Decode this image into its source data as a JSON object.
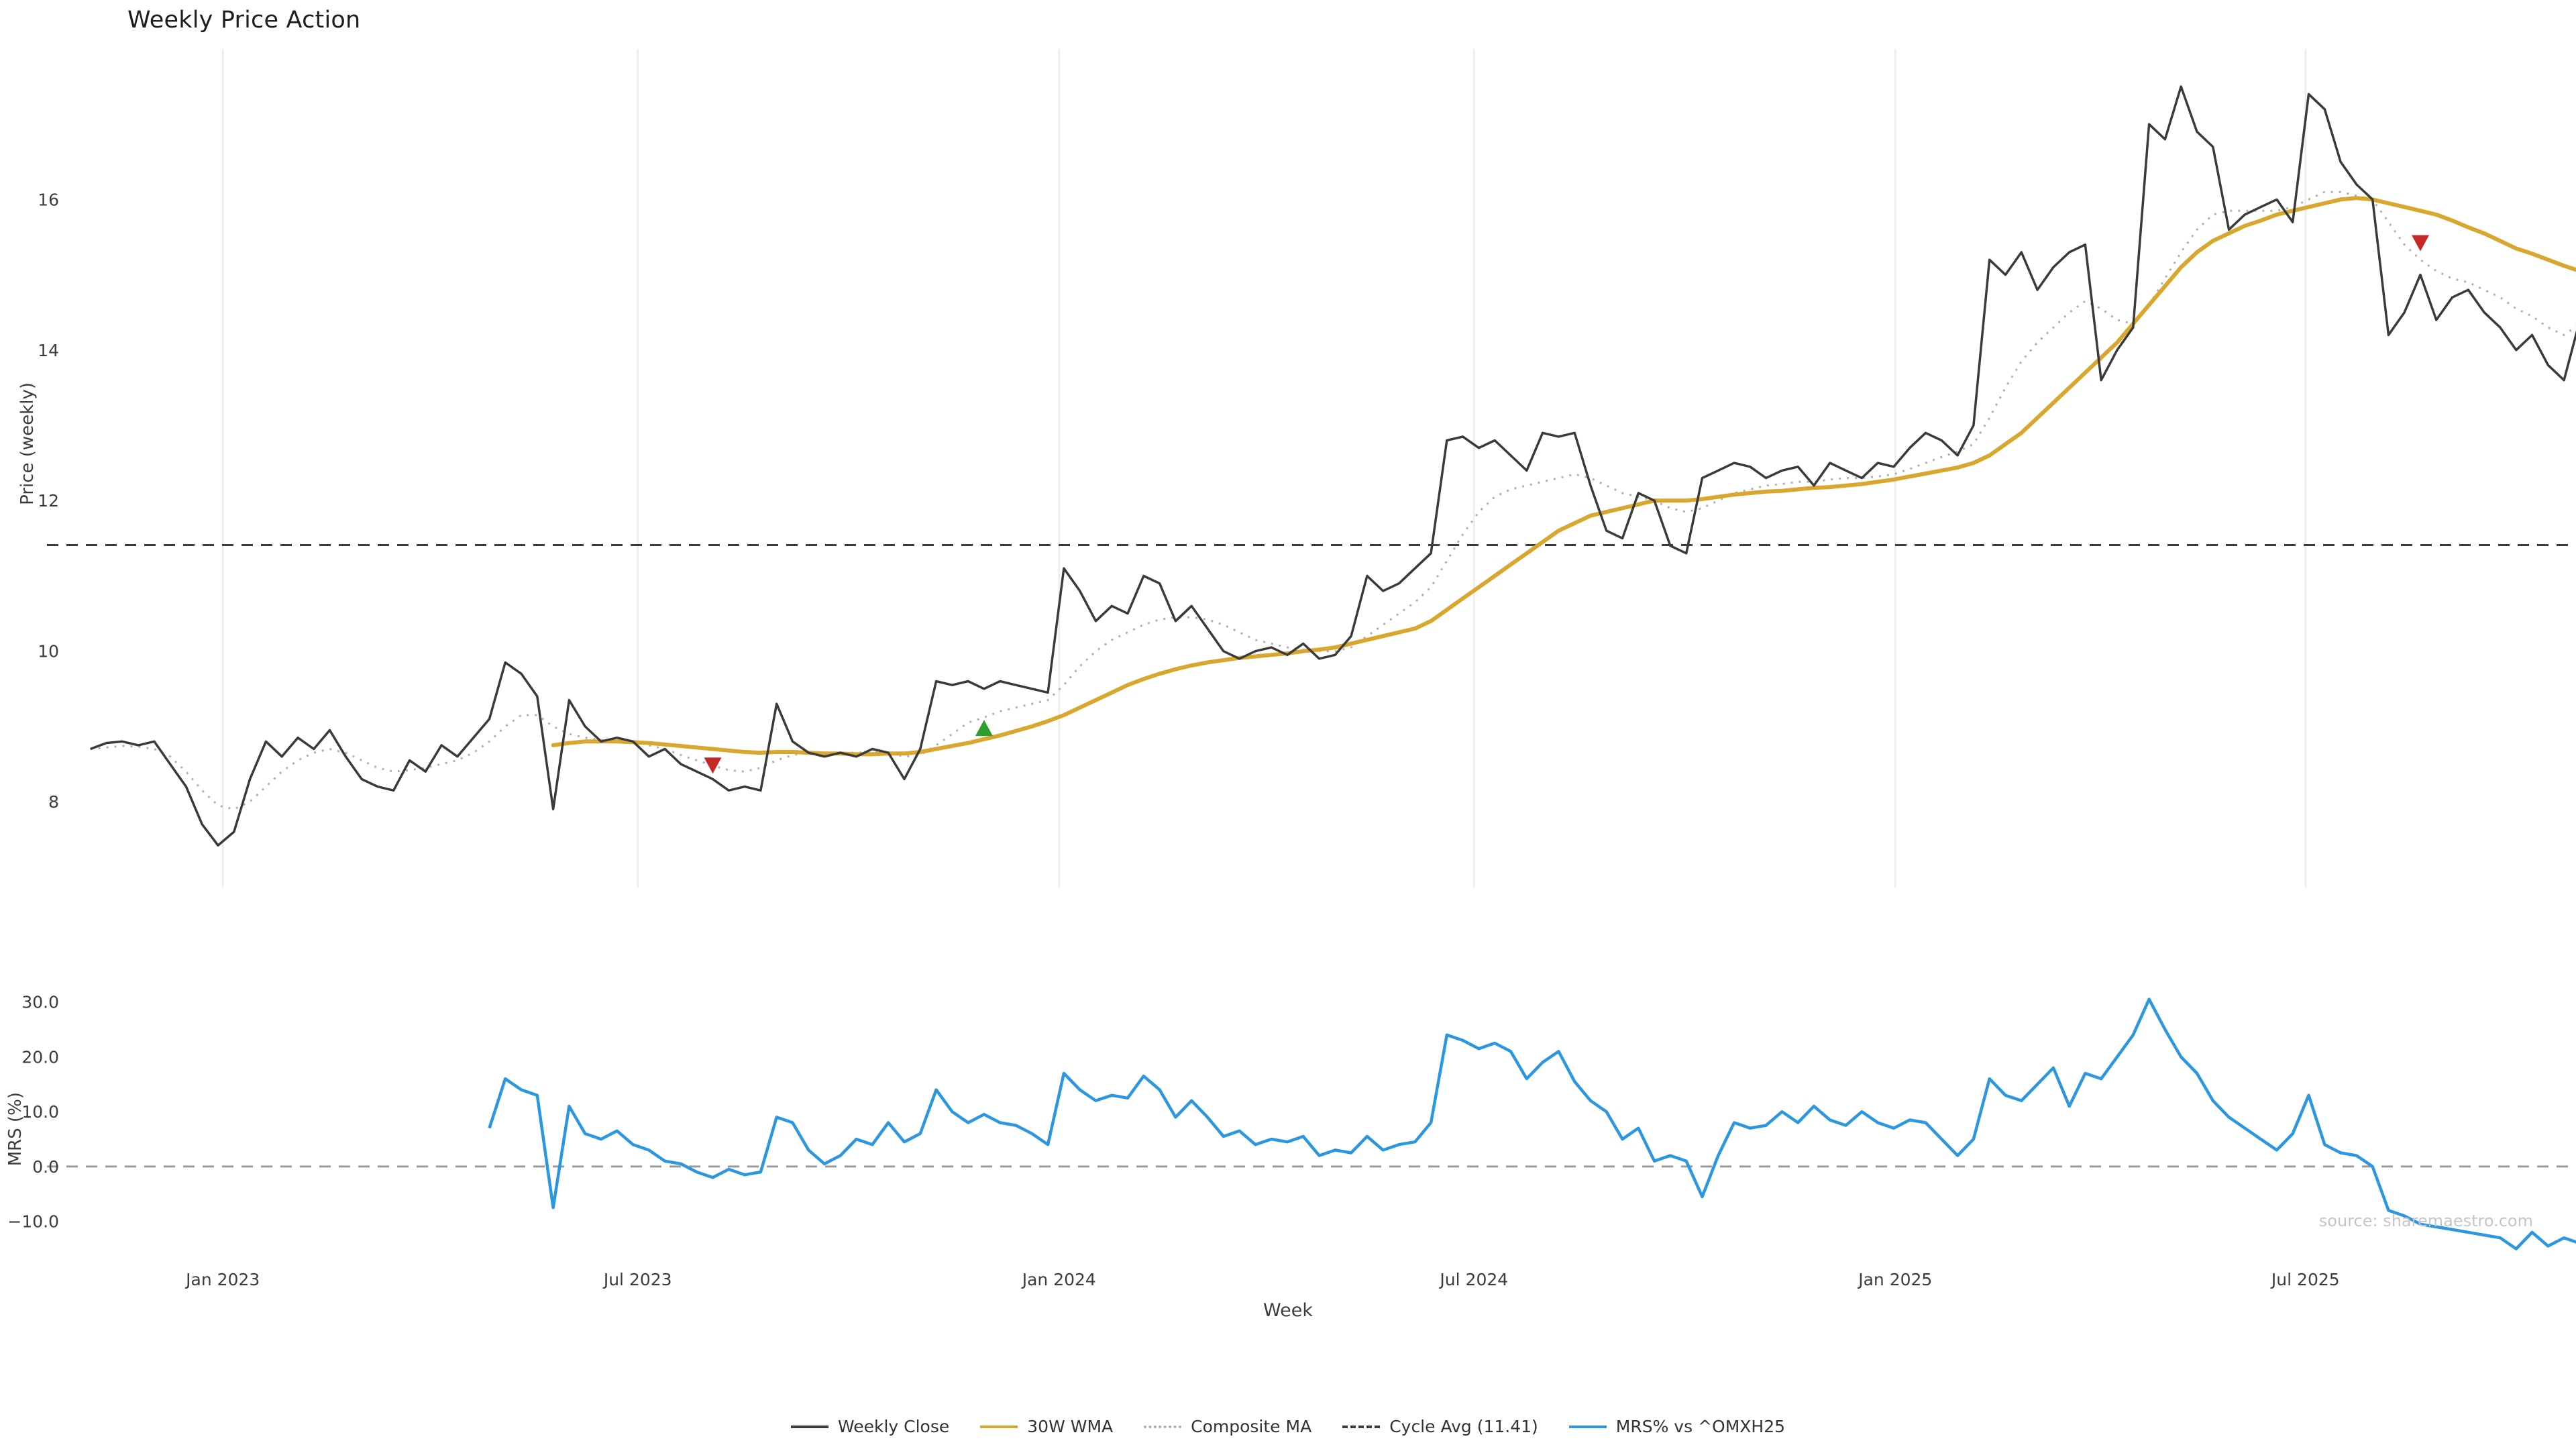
{
  "chart_data": {
    "type": "line",
    "title": "Weekly Price Action",
    "source": "source: sharemaestro.com",
    "colors": {
      "buy": "#2e9e2e",
      "sell": "#c62828",
      "grid": "#ececec"
    },
    "x_axis": {
      "label": "Week",
      "ticks": [
        {
          "week": 8.3,
          "label": "Jan 2023"
        },
        {
          "week": 34.3,
          "label": "Jul 2023"
        },
        {
          "week": 60.7,
          "label": "Jan 2024"
        },
        {
          "week": 86.7,
          "label": "Jul 2024"
        },
        {
          "week": 113.1,
          "label": "Jan 2025"
        },
        {
          "week": 138.8,
          "label": "Jul 2025"
        }
      ]
    },
    "price_panel": {
      "ylabel": "Price (weekly)",
      "ylim": [
        6.86,
        18.0
      ],
      "cycle_avg": 11.41,
      "yticks": [
        {
          "v": 8,
          "label": "8"
        },
        {
          "v": 10,
          "label": "10"
        },
        {
          "v": 12,
          "label": "12"
        },
        {
          "v": 14,
          "label": "14"
        },
        {
          "v": 16,
          "label": "16"
        }
      ],
      "series": [
        {
          "name": "Weekly Close",
          "start_week": 0,
          "color": "#3a3a3a",
          "dash": "solid",
          "values": [
            8.7,
            8.78,
            8.8,
            8.75,
            8.8,
            8.5,
            8.2,
            7.7,
            7.42,
            7.6,
            8.3,
            8.8,
            8.6,
            8.85,
            8.7,
            8.95,
            8.6,
            8.3,
            8.2,
            8.15,
            8.55,
            8.4,
            8.75,
            8.6,
            8.85,
            9.1,
            9.85,
            9.7,
            9.4,
            7.9,
            9.35,
            9.0,
            8.8,
            8.85,
            8.8,
            8.6,
            8.7,
            8.5,
            8.4,
            8.3,
            8.15,
            8.2,
            8.15,
            9.3,
            8.8,
            8.65,
            8.6,
            8.65,
            8.6,
            8.7,
            8.65,
            8.3,
            8.7,
            9.6,
            9.55,
            9.6,
            9.5,
            9.6,
            9.55,
            9.5,
            9.45,
            11.1,
            10.8,
            10.4,
            10.6,
            10.5,
            11.0,
            10.9,
            10.4,
            10.6,
            10.3,
            10.0,
            9.9,
            10.0,
            10.05,
            9.95,
            10.1,
            9.9,
            9.95,
            10.2,
            11.0,
            10.8,
            10.9,
            11.1,
            11.3,
            12.8,
            12.85,
            12.7,
            12.8,
            12.6,
            12.4,
            12.9,
            12.85,
            12.9,
            12.2,
            11.6,
            11.5,
            12.1,
            12.0,
            11.4,
            11.3,
            12.3,
            12.4,
            12.5,
            12.45,
            12.3,
            12.4,
            12.45,
            12.2,
            12.5,
            12.4,
            12.3,
            12.5,
            12.45,
            12.7,
            12.9,
            12.8,
            12.6,
            13.0,
            15.2,
            15.0,
            15.3,
            14.8,
            15.1,
            15.3,
            15.4,
            13.6,
            14.0,
            14.3,
            17.0,
            16.8,
            17.5,
            16.9,
            16.7,
            15.6,
            15.8,
            15.9,
            16.0,
            15.7,
            17.4,
            17.2,
            16.5,
            16.2,
            16.0,
            14.2,
            14.5,
            15.0,
            14.4,
            14.7,
            14.8,
            14.5,
            14.3,
            14.0,
            14.2,
            13.8,
            13.6,
            14.4
          ]
        },
        {
          "name": "30W WMA",
          "start_week": 29,
          "color": "#d9a62e",
          "dash": "solid",
          "values": [
            8.75,
            8.78,
            8.8,
            8.8,
            8.8,
            8.79,
            8.78,
            8.76,
            8.74,
            8.72,
            8.7,
            8.68,
            8.66,
            8.65,
            8.66,
            8.66,
            8.65,
            8.64,
            8.64,
            8.63,
            8.63,
            8.64,
            8.64,
            8.66,
            8.7,
            8.74,
            8.78,
            8.83,
            8.88,
            8.94,
            9.0,
            9.07,
            9.15,
            9.25,
            9.35,
            9.45,
            9.55,
            9.63,
            9.7,
            9.76,
            9.81,
            9.85,
            9.88,
            9.91,
            9.93,
            9.95,
            9.97,
            10.0,
            10.02,
            10.05,
            10.1,
            10.15,
            10.2,
            10.25,
            10.3,
            10.4,
            10.55,
            10.7,
            10.85,
            11.0,
            11.15,
            11.3,
            11.45,
            11.6,
            11.7,
            11.8,
            11.85,
            11.9,
            11.95,
            12.0,
            12.0,
            12.0,
            12.02,
            12.05,
            12.08,
            12.1,
            12.12,
            12.13,
            12.15,
            12.17,
            12.18,
            12.2,
            12.22,
            12.25,
            12.28,
            12.32,
            12.36,
            12.4,
            12.44,
            12.5,
            12.6,
            12.75,
            12.9,
            13.1,
            13.3,
            13.5,
            13.7,
            13.9,
            14.1,
            14.35,
            14.6,
            14.85,
            15.1,
            15.3,
            15.45,
            15.55,
            15.65,
            15.72,
            15.8,
            15.85,
            15.9,
            15.95,
            16.0,
            16.02,
            16.0,
            15.95,
            15.9,
            15.85,
            15.8,
            15.72,
            15.63,
            15.55,
            15.45,
            15.35,
            15.28,
            15.2,
            15.12,
            15.05
          ]
        },
        {
          "name": "Composite MA",
          "start_week": 0,
          "color": "#b0b0b0",
          "dash": "dotted",
          "values": [
            8.7,
            8.72,
            8.74,
            8.73,
            8.7,
            8.6,
            8.4,
            8.15,
            7.95,
            7.9,
            8.0,
            8.2,
            8.4,
            8.55,
            8.65,
            8.7,
            8.65,
            8.55,
            8.45,
            8.4,
            8.42,
            8.45,
            8.5,
            8.55,
            8.65,
            8.8,
            9.0,
            9.15,
            9.15,
            9.0,
            8.9,
            8.85,
            8.82,
            8.82,
            8.8,
            8.75,
            8.7,
            8.62,
            8.55,
            8.48,
            8.42,
            8.4,
            8.45,
            8.55,
            8.62,
            8.65,
            8.65,
            8.65,
            8.65,
            8.66,
            8.65,
            8.6,
            8.62,
            8.75,
            8.9,
            9.05,
            9.12,
            9.2,
            9.25,
            9.3,
            9.35,
            9.55,
            9.8,
            10.0,
            10.15,
            10.25,
            10.35,
            10.42,
            10.45,
            10.45,
            10.42,
            10.35,
            10.25,
            10.15,
            10.1,
            10.05,
            10.02,
            10.0,
            10.0,
            10.05,
            10.2,
            10.35,
            10.5,
            10.65,
            10.85,
            11.2,
            11.55,
            11.85,
            12.05,
            12.15,
            12.2,
            12.25,
            12.3,
            12.35,
            12.3,
            12.2,
            12.1,
            12.05,
            12.0,
            11.9,
            11.85,
            11.9,
            12.0,
            12.1,
            12.15,
            12.2,
            12.22,
            12.25,
            12.25,
            12.28,
            12.3,
            12.3,
            12.32,
            12.35,
            12.42,
            12.5,
            12.58,
            12.65,
            12.75,
            13.1,
            13.5,
            13.85,
            14.1,
            14.3,
            14.5,
            14.65,
            14.55,
            14.4,
            14.35,
            14.6,
            14.95,
            15.3,
            15.6,
            15.8,
            15.85,
            15.85,
            15.85,
            15.85,
            15.9,
            16.0,
            16.1,
            16.1,
            16.05,
            16.0,
            15.7,
            15.4,
            15.2,
            15.05,
            14.95,
            14.9,
            14.8,
            14.7,
            14.55,
            14.45,
            14.3,
            14.2,
            14.35
          ]
        }
      ],
      "markers": [
        {
          "type": "sell",
          "week": 39,
          "price": 8.48
        },
        {
          "type": "buy",
          "week": 56,
          "price": 8.98
        },
        {
          "type": "sell",
          "week": 146,
          "price": 15.42
        }
      ]
    },
    "mrs_panel": {
      "ylabel": "MRS (%)",
      "ylim": [
        -16.4,
        32.9
      ],
      "zero_line": 0.0,
      "yticks": [
        {
          "v": 30,
          "label": "30.0"
        },
        {
          "v": 20,
          "label": "20.0"
        },
        {
          "v": 10,
          "label": "10.0"
        },
        {
          "v": 0,
          "label": "0.0"
        },
        {
          "v": -10,
          "label": "−10.0"
        }
      ],
      "series": {
        "name": "MRS% vs ^OMXH25",
        "start_week": 25,
        "color": "#2b97e0",
        "values": [
          7.0,
          16.0,
          14.0,
          13.0,
          -7.5,
          11.0,
          6.0,
          5.0,
          6.5,
          4.0,
          3.0,
          1.0,
          0.5,
          -1.0,
          -2.0,
          -0.5,
          -1.5,
          -1.0,
          9.0,
          8.0,
          3.0,
          0.5,
          2.0,
          5.0,
          4.0,
          8.0,
          4.5,
          6.0,
          14.0,
          10.0,
          8.0,
          9.5,
          8.0,
          7.5,
          6.0,
          4.0,
          17.0,
          14.0,
          12.0,
          13.0,
          12.5,
          16.5,
          14.0,
          9.0,
          12.0,
          9.0,
          5.5,
          6.5,
          4.0,
          5.0,
          4.5,
          5.5,
          2.0,
          3.0,
          2.5,
          5.5,
          3.0,
          4.0,
          4.5,
          8.0,
          24.0,
          23.0,
          21.5,
          22.5,
          21.0,
          16.0,
          19.0,
          21.0,
          15.5,
          12.0,
          10.0,
          5.0,
          7.0,
          1.0,
          2.0,
          1.0,
          -5.5,
          2.0,
          8.0,
          7.0,
          7.5,
          10.0,
          8.0,
          11.0,
          8.5,
          7.5,
          10.0,
          8.0,
          7.0,
          8.5,
          8.0,
          5.0,
          2.0,
          5.0,
          16.0,
          13.0,
          12.0,
          15.0,
          18.0,
          11.0,
          17.0,
          16.0,
          20.0,
          24.0,
          30.5,
          25.0,
          20.0,
          17.0,
          12.0,
          9.0,
          7.0,
          5.0,
          3.0,
          6.0,
          13.0,
          4.0,
          2.5,
          2.0,
          0.0,
          -8.0,
          -9.0,
          -10.5,
          -11.0,
          -11.5,
          -12.0,
          -12.5,
          -13.0,
          -15.0,
          -12.0,
          -14.5,
          -13.0,
          -14.0
        ]
      }
    },
    "legend": [
      {
        "label": "Weekly Close",
        "color": "#3a3a3a",
        "dash": "solid"
      },
      {
        "label": "30W WMA",
        "color": "#d9a62e",
        "dash": "solid"
      },
      {
        "label": "Composite MA",
        "color": "#b0b0b0",
        "dash": "dotted"
      },
      {
        "label": "Cycle Avg (11.41)",
        "color": "#3c3c3c",
        "dash": "dashed"
      },
      {
        "label": "MRS% vs ^OMXH25",
        "color": "#2b97e0",
        "dash": "solid"
      }
    ]
  }
}
